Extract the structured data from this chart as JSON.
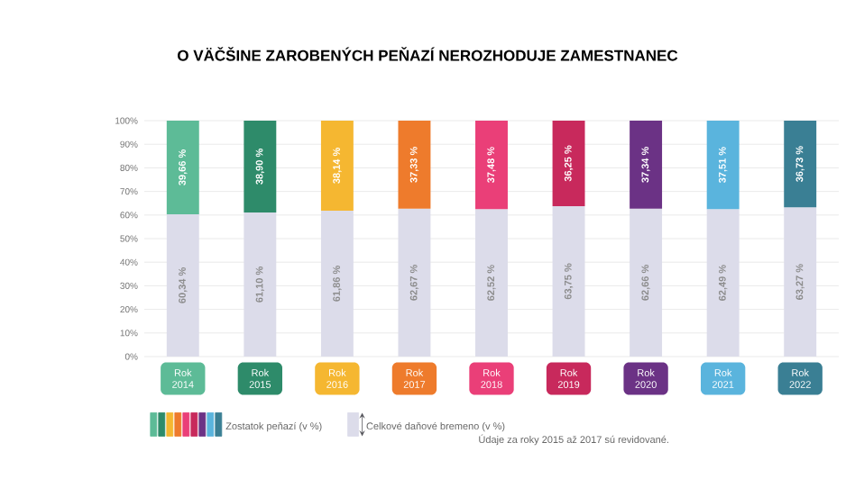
{
  "chart_data": {
    "type": "bar",
    "stacked": true,
    "title": "O VÄČŠINE ZAROBENÝCH PEŇAZÍ NEROZHODUJE ZAMESTNANEC",
    "categories": [
      "Rok 2014",
      "Rok 2015",
      "Rok 2016",
      "Rok 2017",
      "Rok 2018",
      "Rok 2019",
      "Rok 2020",
      "Rok 2021",
      "Rok 2022"
    ],
    "series": [
      {
        "name": "Celkové daňové bremeno (v %)",
        "color": "#dcdcea",
        "values": [
          60.34,
          61.1,
          61.86,
          62.67,
          62.52,
          63.75,
          62.66,
          62.49,
          63.27
        ],
        "value_labels": [
          "60,34 %",
          "61,10 %",
          "61,86 %",
          "62,67 %",
          "62,52 %",
          "63,75 %",
          "62,66 %",
          "62,49 %",
          "63,27 %"
        ]
      },
      {
        "name": "Zostatok peňazí (v %)",
        "colors": [
          "#5dbb97",
          "#2e8b6a",
          "#f5b731",
          "#ee7b2c",
          "#ea3f78",
          "#c8295c",
          "#6b3285",
          "#5ab4dd",
          "#3a7f94"
        ],
        "values": [
          39.66,
          38.9,
          38.14,
          37.33,
          37.48,
          36.25,
          37.34,
          37.51,
          36.73
        ],
        "value_labels": [
          "39,66 %",
          "38,90 %",
          "38,14 %",
          "37,33 %",
          "37,48 %",
          "36,25 %",
          "37,34 %",
          "37,51 %",
          "36,73 %"
        ]
      }
    ],
    "ylim": [
      0,
      100
    ],
    "yticks": [
      {
        "value": 0,
        "label": "0%"
      },
      {
        "value": 10,
        "label": "10%"
      },
      {
        "value": 20,
        "label": "20%"
      },
      {
        "value": 30,
        "label": "30%"
      },
      {
        "value": 40,
        "label": "40%"
      },
      {
        "value": 50,
        "label": "50%"
      },
      {
        "value": 60,
        "label": "60%"
      },
      {
        "value": 70,
        "label": "70%"
      },
      {
        "value": 80,
        "label": "80%"
      },
      {
        "value": 90,
        "label": "90%"
      },
      {
        "value": 100,
        "label": "100%"
      }
    ],
    "grid": "y",
    "legend": "bottom left",
    "annotations": [
      "Údaje za roky 2015 až 2017 sú revidované."
    ]
  }
}
